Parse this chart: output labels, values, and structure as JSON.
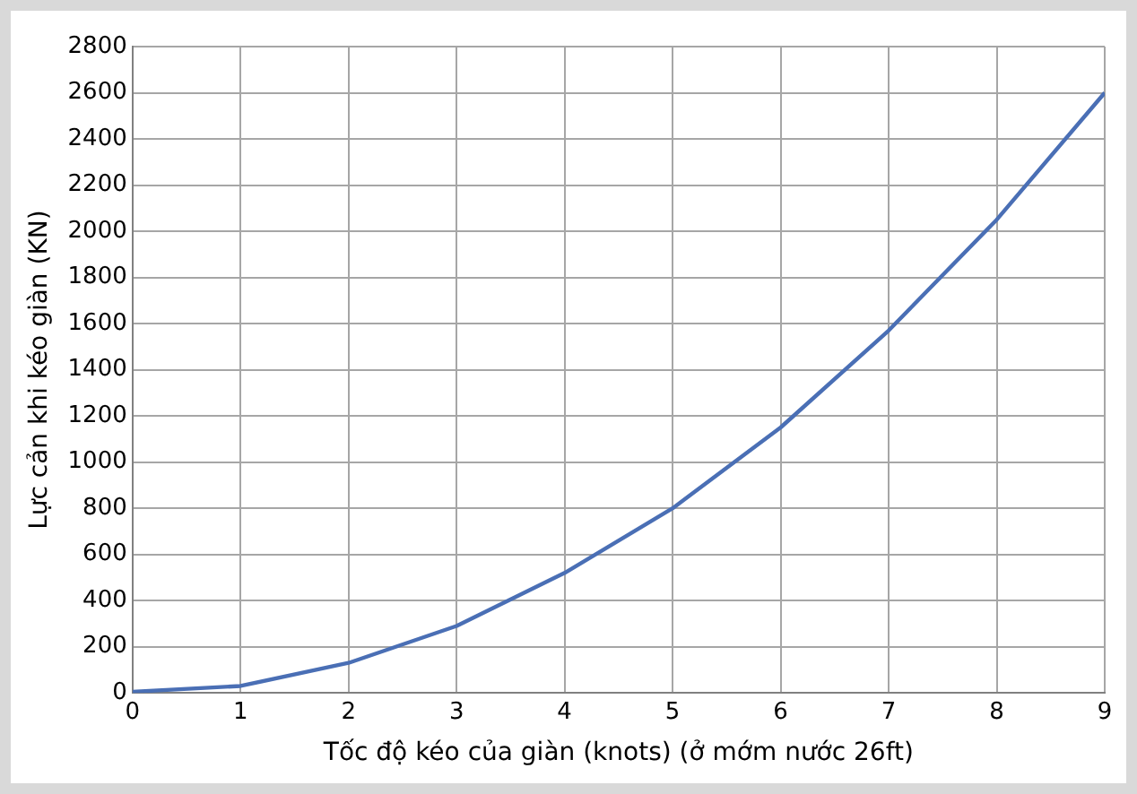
{
  "chart_data": {
    "type": "line",
    "xlabel": "Tốc độ kéo của giàn (knots) (ở mớm nước 26ft)",
    "ylabel": "Lực cản khi kéo giàn (KN)",
    "x": [
      0,
      1,
      2,
      3,
      4,
      5,
      6,
      7,
      8,
      9
    ],
    "series": [
      {
        "color": "#4a6fb5",
        "values": [
          5,
          30,
          130,
          290,
          520,
          800,
          1150,
          1570,
          2050,
          2600
        ]
      }
    ],
    "xlim": [
      0,
      9
    ],
    "xticks": [
      0,
      1,
      2,
      3,
      4,
      5,
      6,
      7,
      8,
      9
    ],
    "ylim": [
      0,
      2800
    ],
    "yticks": [
      0,
      200,
      400,
      600,
      800,
      1000,
      1200,
      1400,
      1600,
      1800,
      2000,
      2200,
      2400,
      2600,
      2800
    ],
    "grid": true,
    "legend": false,
    "marker": "none",
    "line_style": "solid"
  }
}
